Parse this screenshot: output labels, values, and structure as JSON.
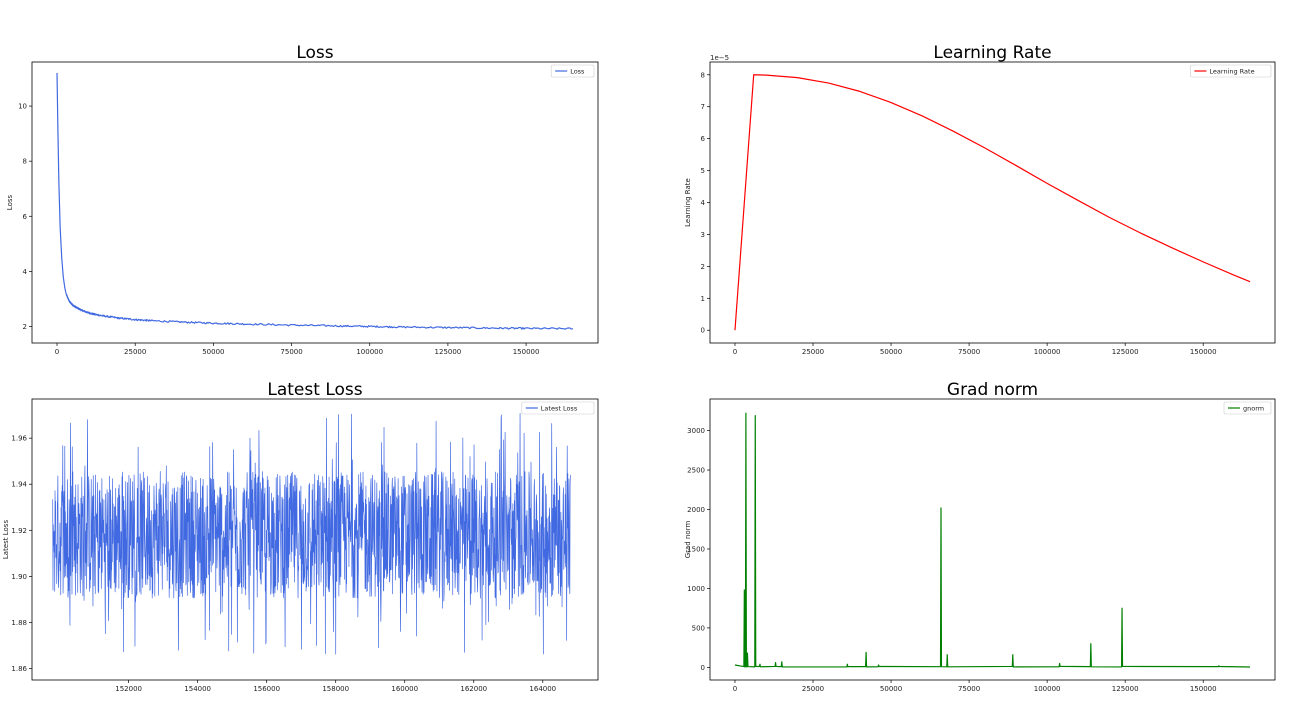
{
  "chart_data": [
    {
      "type": "line",
      "title": "Loss",
      "xlabel": "",
      "ylabel": "Loss",
      "xlim": [
        -8000,
        173000
      ],
      "ylim": [
        1.4,
        11.6
      ],
      "xticks": [
        0,
        25000,
        50000,
        75000,
        100000,
        125000,
        150000
      ],
      "yticks": [
        2,
        4,
        6,
        8,
        10
      ],
      "legend_position": "top-right",
      "series": [
        {
          "name": "Loss",
          "color": "#4169e1",
          "x": [
            0,
            300,
            600,
            1000,
            1500,
            2000,
            2500,
            3000,
            4000,
            5000,
            6000,
            8000,
            10000,
            12000,
            15000,
            20000,
            25000,
            30000,
            40000,
            50000,
            60000,
            75000,
            90000,
            100000,
            110000,
            125000,
            140000,
            150000,
            165000
          ],
          "y": [
            11.2,
            9.0,
            7.2,
            5.6,
            4.5,
            3.8,
            3.4,
            3.15,
            2.9,
            2.78,
            2.7,
            2.58,
            2.5,
            2.44,
            2.38,
            2.3,
            2.25,
            2.21,
            2.16,
            2.12,
            2.09,
            2.05,
            2.02,
            2.0,
            1.98,
            1.96,
            1.94,
            1.93,
            1.92
          ]
        }
      ]
    },
    {
      "type": "line",
      "title": "Learning Rate",
      "xlabel": "",
      "ylabel": "Learning Rate",
      "scale_label": "1e−5",
      "xlim": [
        -8000,
        173000
      ],
      "ylim": [
        -0.4,
        8.4
      ],
      "xticks": [
        0,
        25000,
        50000,
        75000,
        100000,
        125000,
        150000
      ],
      "yticks": [
        0,
        1,
        2,
        3,
        4,
        5,
        6,
        7,
        8
      ],
      "legend_position": "top-right",
      "series": [
        {
          "name": "Learning Rate",
          "color": "#ff0000",
          "x": [
            0,
            6000,
            10000,
            20000,
            30000,
            40000,
            50000,
            60000,
            70000,
            80000,
            90000,
            100000,
            110000,
            120000,
            130000,
            140000,
            150000,
            160000,
            165000
          ],
          "y": [
            0.0,
            8.0,
            7.99,
            7.91,
            7.74,
            7.48,
            7.13,
            6.71,
            6.23,
            5.71,
            5.16,
            4.6,
            4.06,
            3.53,
            3.04,
            2.58,
            2.14,
            1.72,
            1.52
          ]
        }
      ]
    },
    {
      "type": "line",
      "title": "Latest Loss",
      "xlabel": "",
      "ylabel": "Latest Loss",
      "xlim": [
        149200,
        165600
      ],
      "ylim": [
        1.855,
        1.977
      ],
      "xticks": [
        152000,
        154000,
        156000,
        158000,
        160000,
        162000,
        164000
      ],
      "yticks": [
        1.86,
        1.88,
        1.9,
        1.92,
        1.94,
        1.96
      ],
      "legend_position": "top-right",
      "series": [
        {
          "name": "Latest Loss",
          "color": "#4169e1",
          "x_range": [
            149800,
            164800
          ],
          "center": 1.918,
          "band": [
            1.895,
            1.945
          ],
          "spike_max": 1.973,
          "spike_min": 1.862
        }
      ]
    },
    {
      "type": "line",
      "title": "Grad norm",
      "xlabel": "",
      "ylabel": "Grad norm",
      "xlim": [
        -8000,
        173000
      ],
      "ylim": [
        -160,
        3400
      ],
      "xticks": [
        0,
        25000,
        50000,
        75000,
        100000,
        125000,
        150000
      ],
      "yticks": [
        0,
        500,
        1000,
        1500,
        2000,
        2500,
        3000
      ],
      "legend_position": "top-right",
      "series": [
        {
          "name": "gnorm",
          "color": "#008000",
          "x_range": [
            0,
            165000
          ],
          "baseline": 5,
          "spikes": [
            {
              "x": 3000,
              "y": 980
            },
            {
              "x": 3500,
              "y": 3220
            },
            {
              "x": 4000,
              "y": 180
            },
            {
              "x": 6500,
              "y": 3190
            },
            {
              "x": 8000,
              "y": 40
            },
            {
              "x": 13000,
              "y": 60
            },
            {
              "x": 15000,
              "y": 70
            },
            {
              "x": 36000,
              "y": 40
            },
            {
              "x": 42000,
              "y": 190
            },
            {
              "x": 46000,
              "y": 30
            },
            {
              "x": 66000,
              "y": 2020
            },
            {
              "x": 68000,
              "y": 160
            },
            {
              "x": 89000,
              "y": 160
            },
            {
              "x": 104000,
              "y": 50
            },
            {
              "x": 114000,
              "y": 300
            },
            {
              "x": 124000,
              "y": 750
            },
            {
              "x": 155000,
              "y": 20
            }
          ]
        }
      ]
    }
  ]
}
